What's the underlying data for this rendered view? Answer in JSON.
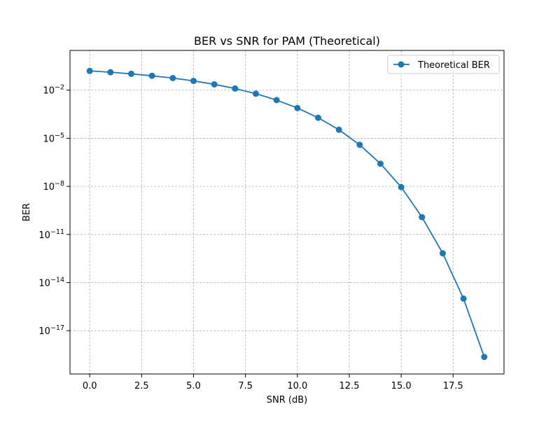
{
  "chart_data": {
    "type": "line",
    "title": "BER vs SNR for PAM (Theoretical)",
    "xlabel": "SNR (dB)",
    "ylabel": "BER",
    "x_scale": "linear",
    "y_scale": "log",
    "xlim": [
      -0.95,
      19.95
    ],
    "ylim": [
      2e-20,
      3.0
    ],
    "x_ticks": [
      {
        "value": 0.0,
        "label": "0.0"
      },
      {
        "value": 2.5,
        "label": "2.5"
      },
      {
        "value": 5.0,
        "label": "5.0"
      },
      {
        "value": 7.5,
        "label": "7.5"
      },
      {
        "value": 10.0,
        "label": "10.0"
      },
      {
        "value": 12.5,
        "label": "12.5"
      },
      {
        "value": 15.0,
        "label": "15.0"
      },
      {
        "value": 17.5,
        "label": "17.5"
      }
    ],
    "y_ticks": [
      {
        "value": 0.01,
        "base": "10",
        "exp": "−2"
      },
      {
        "value": 1e-05,
        "base": "10",
        "exp": "−5"
      },
      {
        "value": 1e-08,
        "base": "10",
        "exp": "−8"
      },
      {
        "value": 1e-11,
        "base": "10",
        "exp": "−11"
      },
      {
        "value": 1e-14,
        "base": "10",
        "exp": "−14"
      },
      {
        "value": 1e-17,
        "base": "10",
        "exp": "−17"
      }
    ],
    "grid": true,
    "legend_position": "top-right",
    "series": [
      {
        "name": "Theoretical BER",
        "color": "#1f77b4",
        "marker": "circle",
        "x": [
          0,
          1,
          2,
          3,
          4,
          5,
          6,
          7,
          8,
          9,
          10,
          11,
          12,
          13,
          14,
          15,
          16,
          17,
          18,
          19
        ],
        "y": [
          0.158,
          0.131,
          0.104,
          0.0786,
          0.0565,
          0.0377,
          0.023,
          0.0126,
          0.00601,
          0.0024,
          0.00077,
          0.00019,
          3.4e-05,
          3.9e-06,
          2.6e-07,
          9e-09,
          1.2e-10,
          6.7e-13,
          1e-15,
          2.3e-19
        ]
      }
    ]
  }
}
